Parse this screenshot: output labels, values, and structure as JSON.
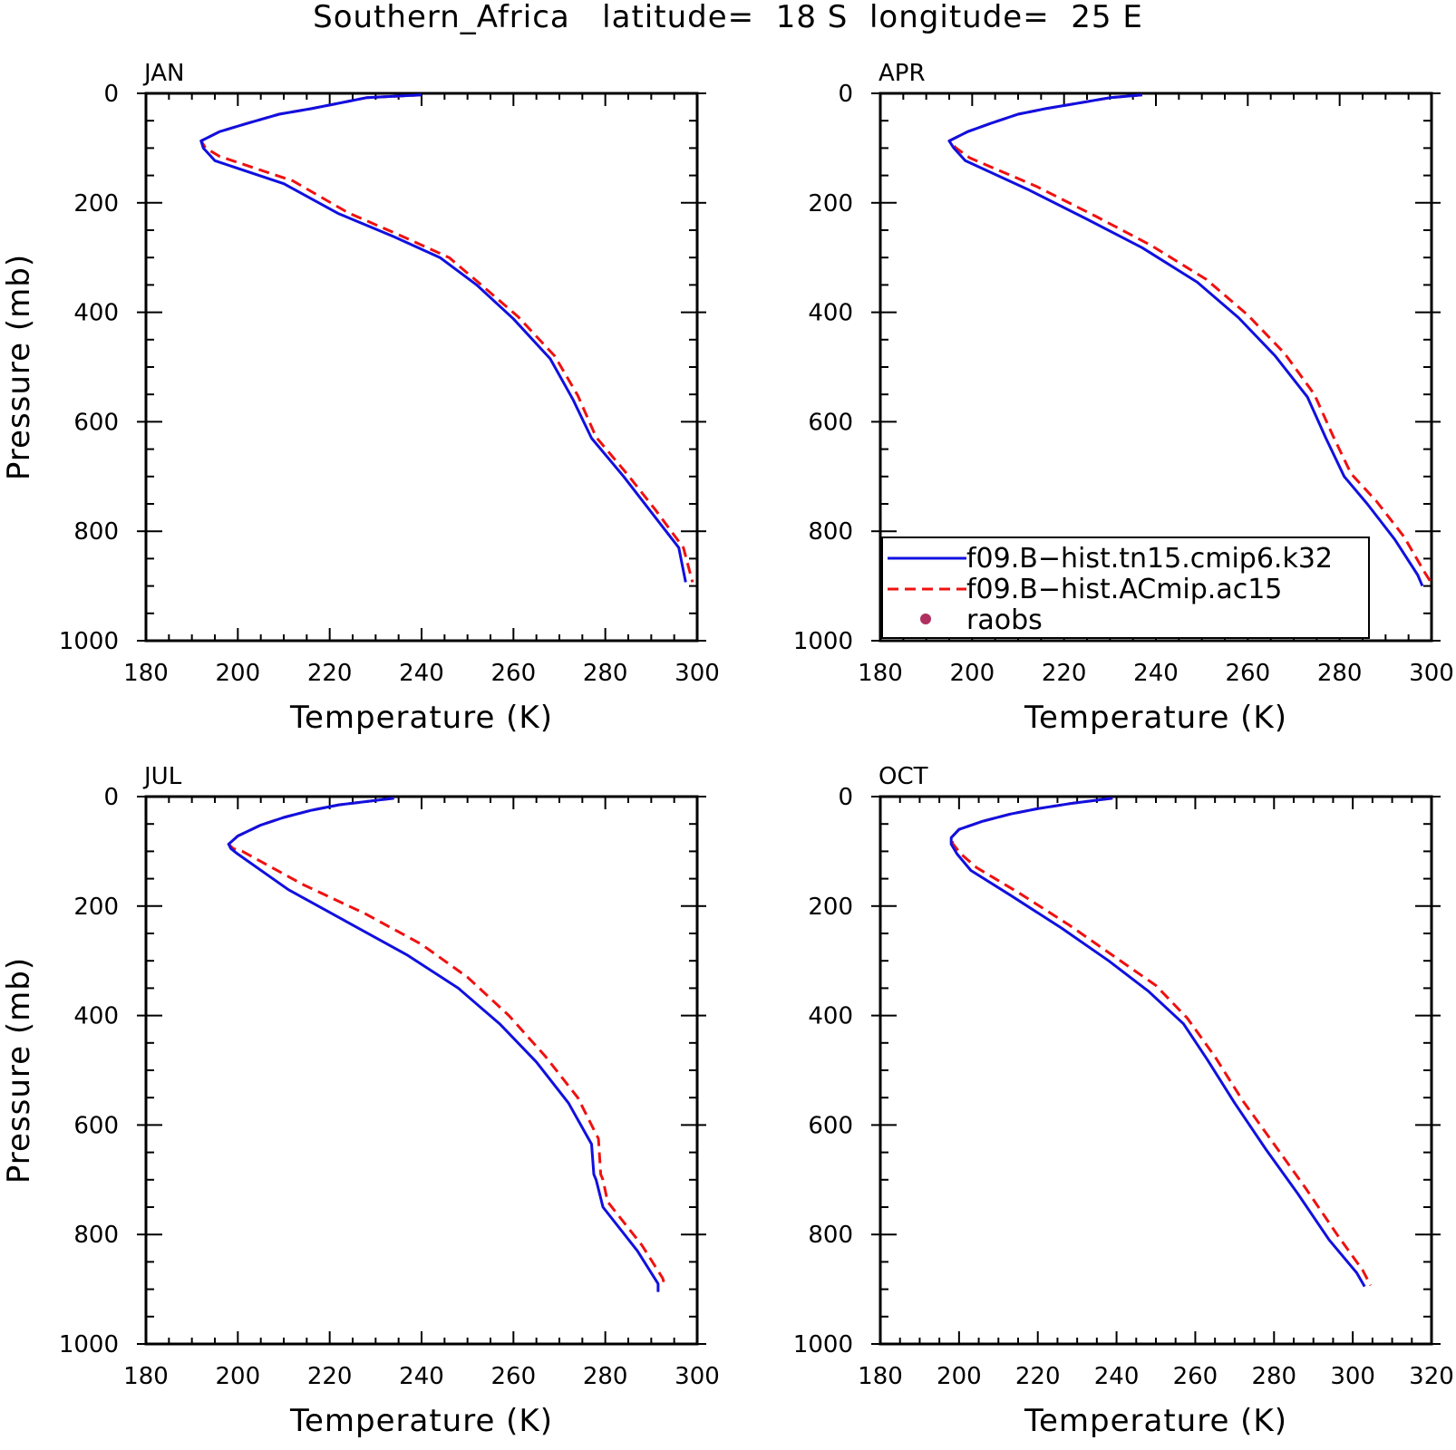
{
  "figure": {
    "title": "Southern_Africa   latitude=  18 S  longitude=  25 E"
  },
  "legend": {
    "entries": [
      {
        "label": "f09.B−hist.tn15.cmip6.k32",
        "color": "#1010e0",
        "style": "solid"
      },
      {
        "label": "f09.B−hist.ACmip.ac15",
        "color": "#f01010",
        "style": "dashed"
      },
      {
        "label": "raobs",
        "color": "#b03060",
        "style": "marker"
      }
    ]
  },
  "chart_data": [
    {
      "type": "line",
      "panel": "JAN",
      "xlabel": "Temperature (K)",
      "ylabel": "Pressure (mb)",
      "xlim": [
        180,
        300
      ],
      "ylim": [
        0,
        1000
      ],
      "y_inverted": true,
      "xticks": [
        "180",
        "200",
        "220",
        "240",
        "260",
        "280",
        "300"
      ],
      "yticks": [
        "0",
        "200",
        "400",
        "600",
        "800",
        "1000"
      ],
      "series": [
        {
          "name": "f09.B−hist.tn15.cmip6.k32",
          "color": "#1010e0",
          "dashed": false,
          "x": [
            240,
            228,
            222,
            216,
            209,
            202,
            196,
            192,
            192.5,
            195,
            210,
            222,
            234,
            244,
            252,
            260,
            268,
            273,
            277,
            284,
            290,
            296,
            297.5
          ],
          "y": [
            3,
            8,
            18,
            28,
            38,
            55,
            70,
            87,
            100,
            123,
            165,
            220,
            262,
            300,
            350,
            412,
            485,
            560,
            630,
            700,
            765,
            830,
            893
          ]
        },
        {
          "name": "f09.B−hist.ACmip.ac15",
          "color": "#f01010",
          "dashed": true,
          "x": [
            240,
            228,
            222,
            216,
            209,
            202,
            196,
            192,
            193,
            196,
            212,
            224,
            236,
            246,
            253,
            261,
            269,
            274,
            278,
            285,
            291,
            297,
            299
          ],
          "y": [
            3,
            8,
            18,
            28,
            38,
            55,
            70,
            87,
            100,
            115,
            160,
            218,
            262,
            300,
            350,
            408,
            480,
            552,
            628,
            698,
            762,
            830,
            893
          ]
        }
      ]
    },
    {
      "type": "line",
      "panel": "APR",
      "xlabel": "Temperature (K)",
      "ylabel": "",
      "xlim": [
        180,
        300
      ],
      "ylim": [
        0,
        1000
      ],
      "y_inverted": true,
      "xticks": [
        "180",
        "200",
        "220",
        "240",
        "260",
        "280",
        "300"
      ],
      "yticks": [
        "0",
        "200",
        "400",
        "600",
        "800",
        "1000"
      ],
      "series": [
        {
          "name": "f09.B−hist.tn15.cmip6.k32",
          "color": "#1010e0",
          "dashed": false,
          "x": [
            237,
            230,
            223,
            216,
            210,
            204,
            199,
            195,
            196,
            198.5,
            212,
            225,
            237,
            249,
            258,
            266,
            273,
            277,
            281,
            286,
            292,
            297,
            298
          ],
          "y": [
            3,
            8,
            18,
            28,
            38,
            55,
            70,
            87,
            100,
            123,
            175,
            230,
            282,
            345,
            410,
            480,
            555,
            630,
            700,
            750,
            815,
            880,
            900
          ]
        },
        {
          "name": "f09.B−hist.ACmip.ac15",
          "color": "#f01010",
          "dashed": true,
          "x": [
            237,
            230,
            223,
            216,
            210,
            204,
            199,
            195,
            196.5,
            199.5,
            214,
            227,
            239,
            251,
            260,
            268,
            274.5,
            278.5,
            282.5,
            288,
            294,
            298.5,
            300
          ],
          "y": [
            3,
            8,
            18,
            28,
            38,
            55,
            70,
            87,
            100,
            118,
            170,
            225,
            278,
            340,
            405,
            475,
            550,
            625,
            695,
            745,
            810,
            875,
            895
          ]
        }
      ]
    },
    {
      "type": "line",
      "panel": "JUL",
      "xlabel": "Temperature (K)",
      "ylabel": "Pressure (mb)",
      "xlim": [
        180,
        300
      ],
      "ylim": [
        0,
        1000
      ],
      "y_inverted": true,
      "xticks": [
        "180",
        "200",
        "220",
        "240",
        "260",
        "280",
        "300"
      ],
      "yticks": [
        "0",
        "200",
        "400",
        "600",
        "800",
        "1000"
      ],
      "series": [
        {
          "name": "f09.B−hist.tn15.cmip6.k32",
          "color": "#1010e0",
          "dashed": false,
          "x": [
            234,
            222,
            216,
            210,
            205,
            200,
            198,
            198.5,
            200,
            211,
            224,
            237,
            248,
            257,
            265,
            272,
            277,
            277.5,
            278,
            279.5,
            287,
            291.5,
            291.5
          ],
          "y": [
            3,
            15,
            25,
            38,
            52,
            72,
            87,
            95,
            105,
            170,
            230,
            290,
            350,
            415,
            485,
            560,
            635,
            690,
            700,
            750,
            830,
            890,
            905
          ]
        },
        {
          "name": "f09.B−hist.ACmip.ac15",
          "color": "#f01010",
          "dashed": true,
          "x": [
            234,
            222,
            216,
            210,
            205,
            200,
            198,
            199,
            201,
            214,
            228,
            240,
            250,
            259,
            267,
            274,
            278.5,
            279,
            279.5,
            280.5,
            288,
            292.5,
            293
          ],
          "y": [
            3,
            15,
            25,
            38,
            52,
            72,
            87,
            95,
            100,
            160,
            215,
            270,
            330,
            400,
            475,
            550,
            625,
            690,
            700,
            740,
            820,
            880,
            895
          ]
        }
      ]
    },
    {
      "type": "line",
      "panel": "OCT",
      "xlabel": "Temperature (K)",
      "ylabel": "",
      "xlim": [
        180,
        320
      ],
      "ylim": [
        0,
        1000
      ],
      "y_inverted": true,
      "xticks": [
        "180",
        "200",
        "220",
        "240",
        "260",
        "280",
        "300",
        "320"
      ],
      "yticks": [
        "0",
        "200",
        "400",
        "600",
        "800",
        "1000"
      ],
      "series": [
        {
          "name": "f09.B−hist.tn15.cmip6.k32",
          "color": "#1010e0",
          "dashed": false,
          "x": [
            239,
            229,
            220,
            213,
            206,
            200,
            198,
            198,
            199.5,
            203,
            213,
            226,
            238,
            248,
            257,
            263,
            270,
            278,
            286,
            294,
            301,
            303
          ],
          "y": [
            3,
            12,
            22,
            32,
            45,
            60,
            75,
            87,
            105,
            135,
            180,
            240,
            300,
            355,
            415,
            480,
            560,
            645,
            725,
            810,
            870,
            895
          ]
        },
        {
          "name": "f09.B−hist.ACmip.ac15",
          "color": "#f01010",
          "dashed": true,
          "x": [
            239,
            229,
            220,
            213,
            206,
            200,
            198,
            198.5,
            200.5,
            204.5,
            215,
            228,
            240,
            250,
            258,
            265,
            272,
            280,
            288,
            296,
            302.5,
            304.5
          ],
          "y": [
            3,
            12,
            22,
            32,
            45,
            60,
            75,
            87,
            105,
            130,
            175,
            235,
            295,
            345,
            405,
            475,
            555,
            635,
            715,
            800,
            865,
            893
          ]
        }
      ]
    }
  ]
}
